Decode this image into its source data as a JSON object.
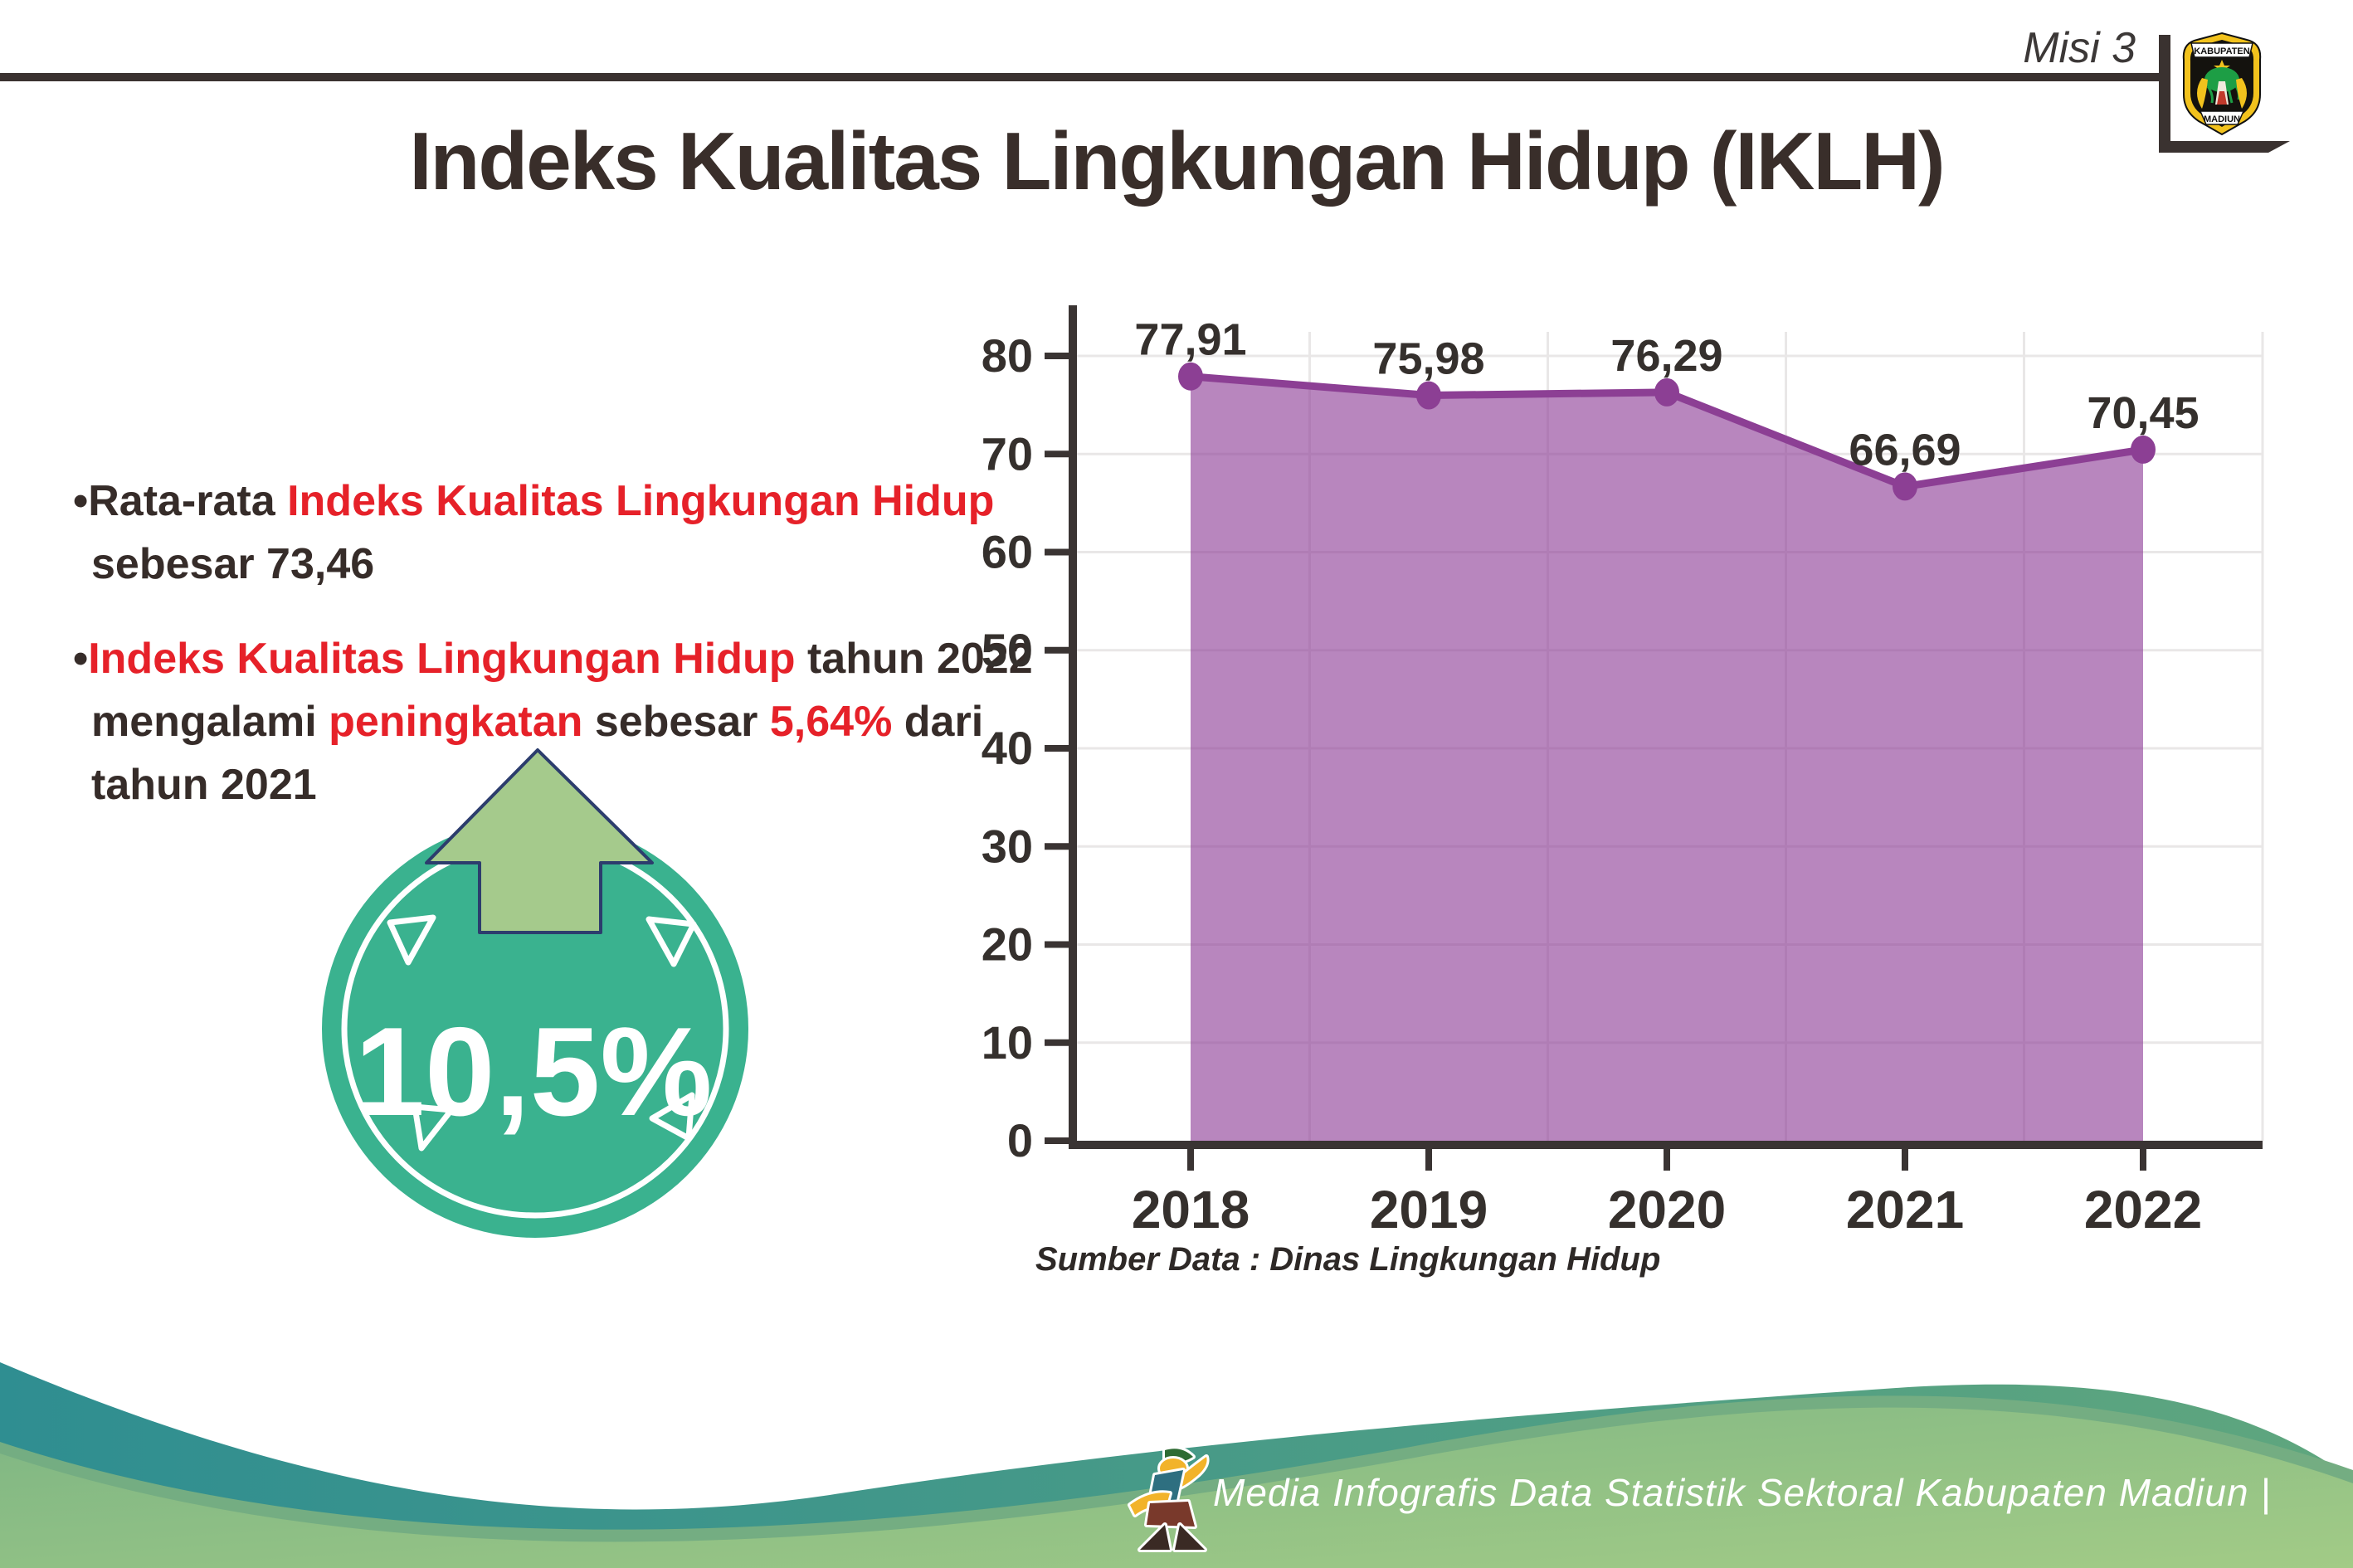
{
  "page": {
    "title": "Indeks Kualitas Lingkungan Hidup (IKLH)",
    "corner_tag": "Misi 3"
  },
  "logo": {
    "top_banner": "KABUPATEN",
    "bottom_banner": "MADIUN"
  },
  "bullets": {
    "b1": {
      "dot": "•",
      "l1_a": "Rata-rata ",
      "l1_b": "Indeks Kualitas Lingkungan Hidup",
      "l2": "sebesar 73,46"
    },
    "b2": {
      "dot": "•",
      "l1_a": "Indeks Kualitas Lingkungan Hidup",
      "l1_b": " tahun 2022",
      "l2_a": "mengalami ",
      "l2_b": "peningkatan",
      "l2_c": " sebesar ",
      "l2_d": "5,64%",
      "l2_e": " dari",
      "l3": "tahun 2021"
    }
  },
  "badge": {
    "value": "10,5%",
    "direction": "up",
    "circle_color": "#3ab28f",
    "arrow_color": "#a5ca8c"
  },
  "chart_data": {
    "type": "area",
    "title": "",
    "categories": [
      "2018",
      "2019",
      "2020",
      "2021",
      "2022"
    ],
    "values": [
      77.91,
      75.98,
      76.29,
      66.69,
      70.45
    ],
    "value_labels": [
      "77,91",
      "75,98",
      "76,29",
      "66,69",
      "70,45"
    ],
    "xlabel": "",
    "ylabel": "",
    "ylim": [
      0,
      80
    ],
    "ytick_interval": 10,
    "grid": true,
    "legend_position": "none",
    "line_color": "#8c3f94",
    "marker_color": "#8c3f94",
    "fill_color": "rgba(140,60,150,0.62)",
    "axis_color": "#3a3433",
    "tick_label_color": "#35302d",
    "data_label_color": "#35302d",
    "source": "Sumber Data : Dinas Lingkungan Hidup"
  },
  "footer": {
    "text": "Media Infografis Data Statistik Sektoral Kabupaten Madiun |"
  },
  "colors": {
    "accent_red": "#e62129",
    "text_dark": "#362c29",
    "teal_band": "#2f8e91",
    "green_band": "#8cbf87",
    "purple": "#8c3f94"
  }
}
